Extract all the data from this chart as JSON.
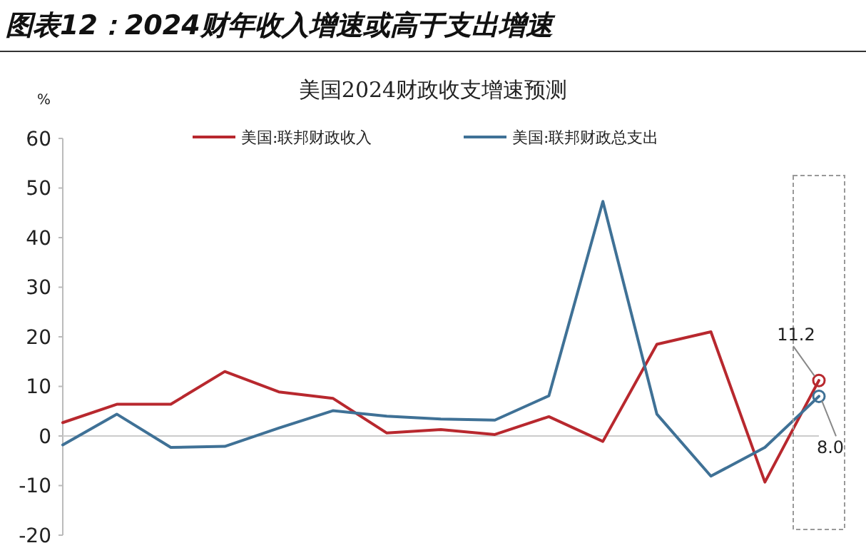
{
  "chart_data": {
    "type": "line",
    "title": "图表12：2024财年收入增速或高于支出增速",
    "subtitle": "美国2024财政收支增速预测",
    "ylabel": "%",
    "categories": [
      null,
      null,
      null,
      null,
      null,
      null,
      null,
      null,
      null,
      null,
      null,
      null,
      null,
      null,
      null
    ],
    "series": [
      {
        "name": "美国:联邦财政收入",
        "color": "#b8282e",
        "values": [
          2.7,
          6.4,
          6.4,
          13.0,
          8.9,
          7.6,
          0.6,
          1.3,
          0.3,
          3.9,
          -1.1,
          18.5,
          21.0,
          -9.3,
          11.2
        ]
      },
      {
        "name": "美国:联邦财政总支出",
        "color": "#3f7196",
        "values": [
          -1.8,
          4.4,
          -2.3,
          -2.1,
          1.6,
          5.1,
          4.0,
          3.4,
          3.2,
          8.1,
          47.3,
          4.4,
          -8.1,
          -2.3,
          8.0
        ]
      }
    ],
    "annotations": [
      "11.2",
      "8.0"
    ],
    "ref_lines": [
      {
        "axis": "y",
        "value": 0,
        "color": "#cccccc"
      }
    ],
    "ylim": [
      -20,
      60
    ],
    "yticks": [
      -20,
      -10,
      0,
      10,
      20,
      30,
      40,
      50,
      60
    ],
    "tick_labels": "y",
    "legend": "top",
    "line_style": "solid"
  }
}
